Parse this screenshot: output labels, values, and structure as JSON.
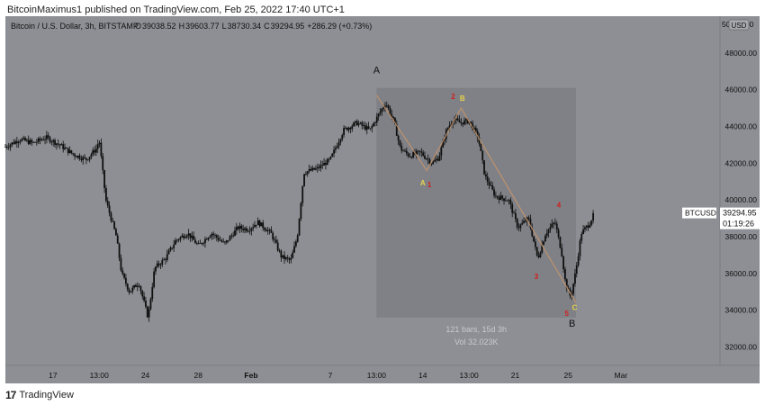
{
  "header": {
    "publisher_text": "BitcoinMaximus1 published on TradingView.com, Feb 25, 2022 17:40 UTC+1"
  },
  "footer": {
    "brand": "TradingView"
  },
  "legend": {
    "symbol_title": "Bitcoin / U.S. Dollar, 3h, BITSTAMP",
    "open_label": "O",
    "open_value": "39038.52",
    "high_label": "H",
    "high_value": "39603.77",
    "low_label": "L",
    "low_value": "38730.34",
    "close_label": "C",
    "close_value": "39294.95",
    "change_text": "+286.29 (+0.73%)"
  },
  "currency_badge": "USD",
  "price_tag": {
    "symbol": "BTCUSD",
    "price": "39294.95",
    "countdown": "01:19:26"
  },
  "range_box": {
    "bars_text": "121 bars, 15d 3h",
    "vol_text": "Vol 32.023K"
  },
  "colors": {
    "background": "#8d8f94",
    "candle": "#0f0f0f",
    "box": "#7d7f84",
    "path": "#c9956a",
    "wave_red": "#d11f1f",
    "wave_yellow": "#e8d44d",
    "price_tag": "#ffffff"
  },
  "chart_data": {
    "type": "candlestick",
    "symbol": "BTCUSD",
    "timeframe": "3h",
    "ylim": [
      31000,
      50000
    ],
    "y_ticks": [
      32000,
      34000,
      36000,
      38000,
      40000,
      42000,
      44000,
      46000,
      48000
    ],
    "y_tick_labels": [
      "32000.00",
      "34000.00",
      "36000.00",
      "38000.00",
      "40000.00",
      "42000.00",
      "44000.00",
      "46000.00",
      "48000.00"
    ],
    "y_top_label": "50000.00",
    "x_ticks": [
      {
        "day": 17,
        "label": "17"
      },
      {
        "day": 20.5,
        "label": "13:00"
      },
      {
        "day": 24,
        "label": "24"
      },
      {
        "day": 28,
        "label": "28"
      },
      {
        "day": 32,
        "label": "Feb"
      },
      {
        "day": 38,
        "label": "7"
      },
      {
        "day": 41.5,
        "label": "13:00"
      },
      {
        "day": 45,
        "label": "14"
      },
      {
        "day": 48.5,
        "label": "13:00"
      },
      {
        "day": 52,
        "label": "21"
      },
      {
        "day": 56,
        "label": "25"
      },
      {
        "day": 60,
        "label": "Mar"
      }
    ],
    "x_day_range": [
      13.4,
      67.5
    ],
    "price_path": [
      {
        "day": 13.4,
        "price": 42900
      },
      {
        "day": 14.5,
        "price": 43300
      },
      {
        "day": 15.5,
        "price": 43100
      },
      {
        "day": 16.5,
        "price": 43400
      },
      {
        "day": 17.5,
        "price": 43000
      },
      {
        "day": 18.5,
        "price": 42500
      },
      {
        "day": 19.5,
        "price": 42200
      },
      {
        "day": 20.3,
        "price": 42800
      },
      {
        "day": 20.5,
        "price": 43300
      },
      {
        "day": 21.0,
        "price": 40000
      },
      {
        "day": 21.8,
        "price": 38000
      },
      {
        "day": 22.2,
        "price": 36000
      },
      {
        "day": 22.8,
        "price": 35000
      },
      {
        "day": 23.5,
        "price": 35500
      },
      {
        "day": 24.2,
        "price": 33600
      },
      {
        "day": 24.7,
        "price": 36300
      },
      {
        "day": 25.5,
        "price": 36800
      },
      {
        "day": 26.3,
        "price": 37800
      },
      {
        "day": 27.2,
        "price": 38200
      },
      {
        "day": 28.0,
        "price": 37500
      },
      {
        "day": 29.0,
        "price": 38200
      },
      {
        "day": 30.0,
        "price": 37600
      },
      {
        "day": 31.0,
        "price": 38500
      },
      {
        "day": 31.8,
        "price": 38400
      },
      {
        "day": 32.5,
        "price": 38800
      },
      {
        "day": 33.5,
        "price": 38200
      },
      {
        "day": 34.3,
        "price": 36900
      },
      {
        "day": 35.0,
        "price": 36700
      },
      {
        "day": 35.5,
        "price": 38000
      },
      {
        "day": 36.0,
        "price": 41500
      },
      {
        "day": 37.0,
        "price": 41700
      },
      {
        "day": 38.0,
        "price": 42200
      },
      {
        "day": 39.0,
        "price": 43800
      },
      {
        "day": 40.0,
        "price": 44200
      },
      {
        "day": 41.0,
        "price": 43800
      },
      {
        "day": 41.7,
        "price": 44700
      },
      {
        "day": 42.2,
        "price": 45300
      },
      {
        "day": 42.8,
        "price": 44300
      },
      {
        "day": 43.3,
        "price": 42800
      },
      {
        "day": 44.0,
        "price": 42400
      },
      {
        "day": 44.8,
        "price": 42600
      },
      {
        "day": 45.7,
        "price": 42000
      },
      {
        "day": 46.2,
        "price": 42300
      },
      {
        "day": 46.8,
        "price": 43800
      },
      {
        "day": 47.3,
        "price": 44400
      },
      {
        "day": 47.8,
        "price": 44200
      },
      {
        "day": 48.5,
        "price": 44300
      },
      {
        "day": 49.2,
        "price": 43400
      },
      {
        "day": 49.7,
        "price": 41300
      },
      {
        "day": 50.5,
        "price": 40200
      },
      {
        "day": 51.5,
        "price": 40000
      },
      {
        "day": 52.2,
        "price": 38500
      },
      {
        "day": 53.0,
        "price": 39000
      },
      {
        "day": 53.7,
        "price": 36800
      },
      {
        "day": 54.3,
        "price": 38200
      },
      {
        "day": 55.0,
        "price": 38800
      },
      {
        "day": 55.5,
        "price": 37200
      },
      {
        "day": 55.8,
        "price": 35500
      },
      {
        "day": 56.2,
        "price": 34700
      },
      {
        "day": 56.6,
        "price": 36200
      },
      {
        "day": 57.0,
        "price": 38200
      },
      {
        "day": 57.6,
        "price": 38700
      },
      {
        "day": 58.0,
        "price": 39300
      }
    ],
    "annotations": [
      {
        "text": "A",
        "color": "#111111",
        "day": 41.5,
        "price": 46900
      },
      {
        "text": "B",
        "color": "#111111",
        "day": 56.3,
        "price": 33100
      },
      {
        "text": "A",
        "color": "#e8d44d",
        "day": 45.0,
        "price": 40800
      },
      {
        "text": "1",
        "color": "#d11f1f",
        "day": 45.5,
        "price": 40700
      },
      {
        "text": "2",
        "color": "#d11f1f",
        "day": 47.3,
        "price": 45500
      },
      {
        "text": "B",
        "color": "#e8d44d",
        "day": 48.0,
        "price": 45400
      },
      {
        "text": "3",
        "color": "#d11f1f",
        "day": 53.6,
        "price": 35700
      },
      {
        "text": "4",
        "color": "#d11f1f",
        "day": 55.3,
        "price": 39600
      },
      {
        "text": "5",
        "color": "#d11f1f",
        "day": 55.9,
        "price": 33700
      },
      {
        "text": "C",
        "color": "#e8d44d",
        "day": 56.5,
        "price": 34000
      }
    ],
    "range_box": {
      "day_start": 41.5,
      "day_end": 56.6,
      "price_low": 33600,
      "price_high": 46100
    },
    "wave_path": [
      {
        "day": 41.5,
        "price": 45700
      },
      {
        "day": 45.3,
        "price": 41600
      },
      {
        "day": 47.9,
        "price": 45000
      },
      {
        "day": 56.6,
        "price": 34400
      }
    ],
    "last_price": 39294.95
  }
}
